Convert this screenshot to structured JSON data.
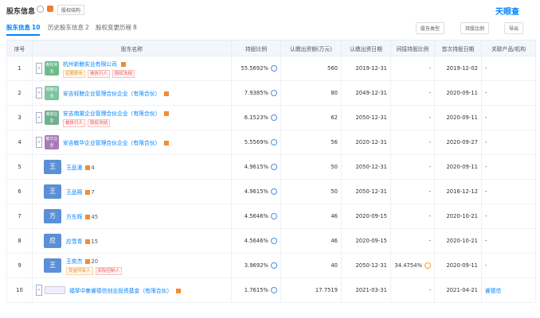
{
  "header": {
    "title": "股东信息",
    "structure_button": "股权结构",
    "logo": "天眼查"
  },
  "tabs": [
    {
      "label": "股东信息",
      "count": "10"
    },
    {
      "label": "历史股东信息",
      "count": "2"
    },
    {
      "label": "股权变更历程",
      "count": "8"
    }
  ],
  "filters": [
    "股东类型",
    "持股比例",
    "导出"
  ],
  "table": {
    "columns": [
      "序号",
      "股东名称",
      "持股比例",
      "认缴出资额(万元)",
      "认缴出资日期",
      "间接持股比例",
      "首次持股日期",
      "关联产品/机构"
    ],
    "rows": [
      {
        "index": "1",
        "name": "杭州新鲸实业有限公司",
        "logo": "新轮实业",
        "logo_color": "#6dbb8a",
        "tags": [
          "控股股东",
          "被执行人",
          "股权冻结"
        ],
        "ratio": "55.5692%",
        "amount": "560",
        "date": "2019-12-31",
        "indirect": "-",
        "first_date": "2019-12-02",
        "related": "-"
      },
      {
        "index": "2",
        "name": "安吉轻鲸企业管理合伙企业（有限合伙）",
        "logo": "轻鲸企业",
        "logo_color": "#7bc5a0",
        "ratio": "7.9385%",
        "amount": "80",
        "date": "2049-12-31",
        "indirect": "-",
        "first_date": "2020-09-11",
        "related": "-"
      },
      {
        "index": "3",
        "name": "安吉南棠企业管理合伙企业（有限合伙）",
        "logo": "南棠企业",
        "logo_color": "#6fae8f",
        "tags": [
          "被执行人",
          "股权冻结"
        ],
        "ratio": "6.1523%",
        "amount": "62",
        "date": "2050-12-31",
        "indirect": "-",
        "first_date": "2020-09-11",
        "related": "-"
      },
      {
        "index": "4",
        "name": "安吉敏华企业管理合伙企业（有限合伙）",
        "logo": "敏华企业",
        "logo_color": "#a77bb8",
        "ratio": "5.5569%",
        "amount": "56",
        "date": "2020-12-31",
        "indirect": "-",
        "first_date": "2020-09-27",
        "related": "-"
      },
      {
        "index": "5",
        "name": "王品潼",
        "avatar": "王",
        "count": "4",
        "ratio": "4.9615%",
        "amount": "50",
        "date": "2050-12-31",
        "indirect": "-",
        "first_date": "2020-09-11",
        "related": "-"
      },
      {
        "index": "6",
        "name": "王品翔",
        "avatar": "王",
        "count": "7",
        "ratio": "4.9615%",
        "amount": "50",
        "date": "2050-12-31",
        "indirect": "-",
        "first_date": "2016-12-12",
        "related": "-"
      },
      {
        "index": "7",
        "name": "方东辉",
        "avatar": "方",
        "count": "45",
        "ratio": "4.5646%",
        "amount": "46",
        "date": "2020-09-15",
        "indirect": "-",
        "first_date": "2020-10-21",
        "related": "-"
      },
      {
        "index": "8",
        "name": "应雪青",
        "avatar": "应",
        "count": "15",
        "ratio": "4.5646%",
        "amount": "46",
        "date": "2020-09-15",
        "indirect": "-",
        "first_date": "2020-10-21",
        "related": "-"
      },
      {
        "index": "9",
        "name": "王奕杰",
        "avatar": "王",
        "count": "20",
        "tags": [
          "受益所有人",
          "实际控制人"
        ],
        "ratio": "3.9692%",
        "amount": "40",
        "date": "2050-12-31",
        "indirect": "34.4754%",
        "first_date": "2020-09-11",
        "related": "-"
      },
      {
        "index": "10",
        "name": "福琴中集睿德信创业投资基金（有限合伙）",
        "ratio": "1.7615%",
        "amount": "17.7519",
        "date": "2021-03-31",
        "indirect": "-",
        "first_date": "2021-04-21",
        "related": "睿德信"
      }
    ]
  }
}
